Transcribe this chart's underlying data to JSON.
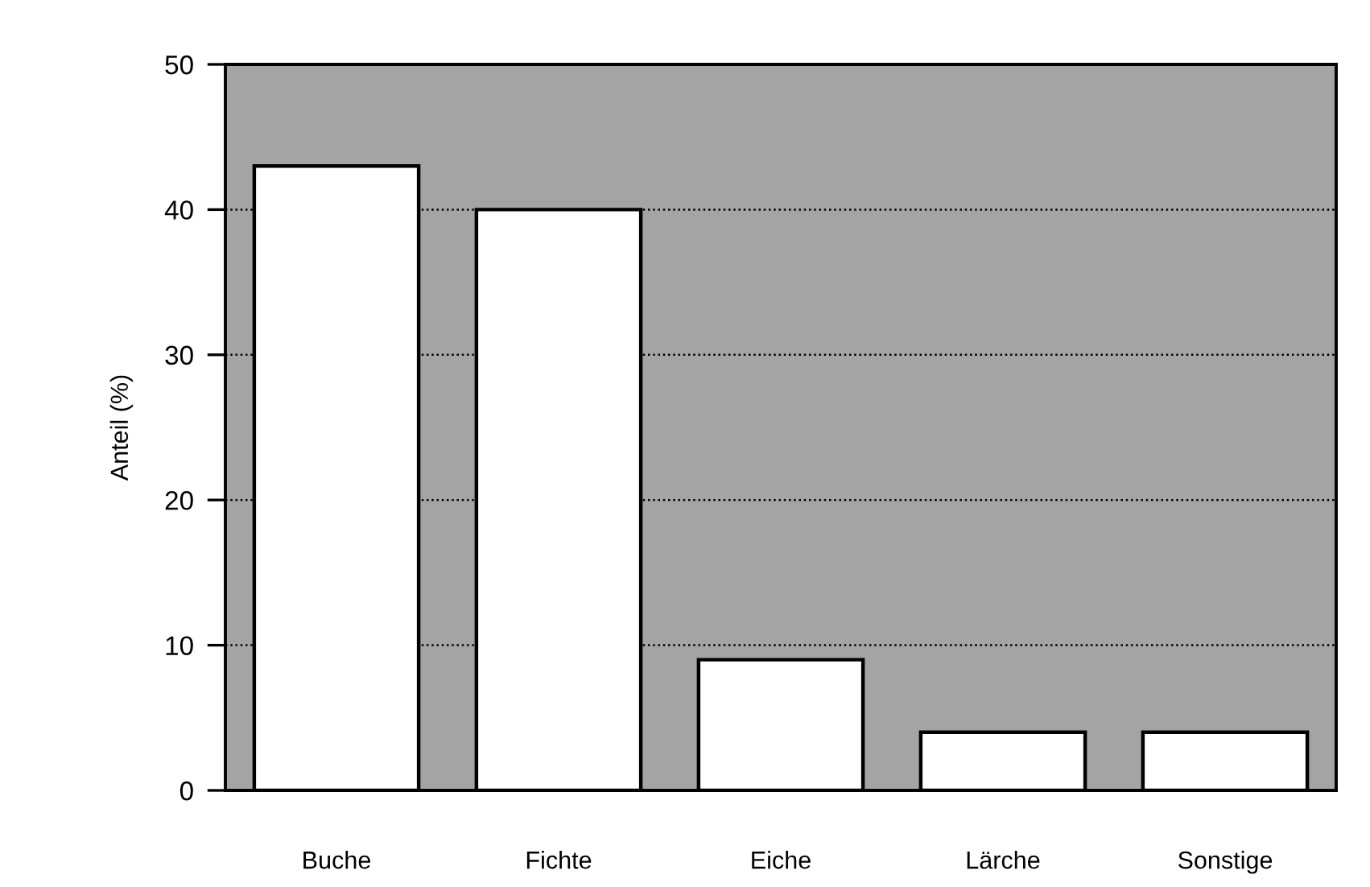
{
  "chart_data": {
    "type": "bar",
    "categories": [
      "Buche",
      "Fichte",
      "Eiche",
      "Lärche",
      "Sonstige"
    ],
    "values": [
      43,
      40,
      9,
      4,
      4
    ],
    "color": "#ffffff",
    "ylabel": "Anteil (%)",
    "ylim": [
      0,
      50
    ],
    "yticks": [
      0,
      10,
      20,
      30,
      40,
      50
    ],
    "grid": "y"
  }
}
